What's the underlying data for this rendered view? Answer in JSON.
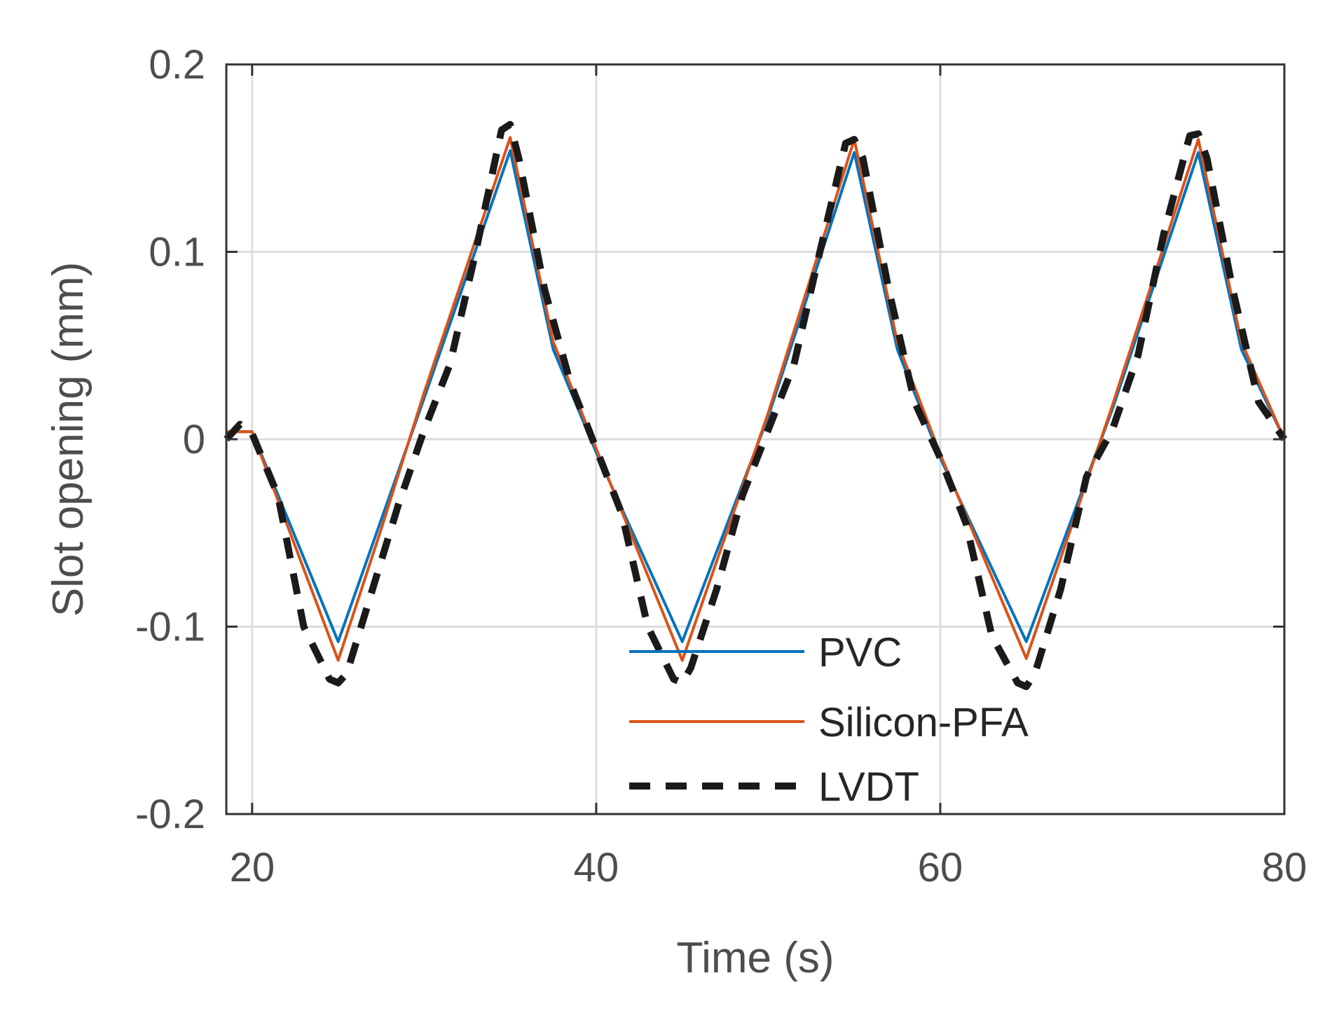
{
  "chart_data": {
    "type": "line",
    "title": "",
    "xlabel": "Time (s)",
    "ylabel": "Slot opening (mm)",
    "xlim": [
      18.5,
      80
    ],
    "ylim": [
      -0.2,
      0.2
    ],
    "xticks": [
      20,
      40,
      60,
      80
    ],
    "xtick_labels": [
      "20",
      "40",
      "60",
      "80"
    ],
    "yticks": [
      -0.2,
      -0.1,
      0,
      0.1,
      0.2
    ],
    "ytick_labels": [
      "-0.2",
      "-0.1",
      "0",
      "0.1",
      "0.2"
    ],
    "grid": true,
    "legend_position": "bottom-center",
    "series": [
      {
        "name": "PVC",
        "color": "#0072BD",
        "style": "solid",
        "x": [
          18.5,
          20,
          25,
          27.5,
          30,
          35,
          37.5,
          40,
          45,
          47.5,
          50,
          55,
          57.5,
          60,
          65,
          67.5,
          70,
          75,
          77.5,
          80
        ],
        "y": [
          0.004,
          0.004,
          -0.108,
          -0.043,
          0.022,
          0.154,
          0.048,
          -0.007,
          -0.108,
          -0.048,
          0.012,
          0.153,
          0.048,
          -0.01,
          -0.108,
          -0.046,
          0.016,
          0.153,
          0.048,
          0
        ]
      },
      {
        "name": "Silicon-PFA",
        "color": "#D95319",
        "style": "solid",
        "x": [
          18.5,
          20,
          25,
          27.5,
          30,
          35,
          37.5,
          40,
          45,
          47.5,
          50,
          55,
          57.5,
          60,
          65,
          67.5,
          70,
          75,
          77.5,
          80
        ],
        "y": [
          0.004,
          0.004,
          -0.118,
          -0.048,
          0.025,
          0.161,
          0.052,
          -0.005,
          -0.118,
          -0.052,
          0.014,
          0.16,
          0.052,
          -0.008,
          -0.117,
          -0.05,
          0.018,
          0.16,
          0.052,
          0
        ]
      },
      {
        "name": "LVDT",
        "color": "#1a1a1a",
        "style": "dashed",
        "x": [
          18.5,
          19.3,
          20,
          21.5,
          23,
          24.5,
          25,
          25.5,
          27,
          28.5,
          30,
          31.5,
          33,
          34.5,
          35,
          35.5,
          37,
          38.5,
          40,
          41.5,
          43,
          44.5,
          45,
          45.5,
          47,
          48.5,
          50,
          51.5,
          53,
          54.5,
          55,
          55.5,
          57,
          58.5,
          60,
          61.5,
          63,
          64.5,
          65,
          65.5,
          67,
          68.5,
          70,
          71.5,
          73,
          74.5,
          75,
          75.5,
          77,
          78.5,
          80
        ],
        "y": [
          0.0,
          0.008,
          0.003,
          -0.03,
          -0.1,
          -0.128,
          -0.13,
          -0.125,
          -0.08,
          -0.035,
          0.005,
          0.04,
          0.1,
          0.165,
          0.168,
          0.15,
          0.08,
          0.03,
          -0.005,
          -0.04,
          -0.1,
          -0.128,
          -0.13,
          -0.122,
          -0.08,
          -0.03,
          0.005,
          0.04,
          0.1,
          0.158,
          0.16,
          0.15,
          0.08,
          0.02,
          -0.01,
          -0.045,
          -0.105,
          -0.13,
          -0.132,
          -0.125,
          -0.08,
          -0.02,
          0.005,
          0.045,
          0.11,
          0.162,
          0.163,
          0.15,
          0.08,
          0.02,
          0.0
        ]
      }
    ]
  }
}
